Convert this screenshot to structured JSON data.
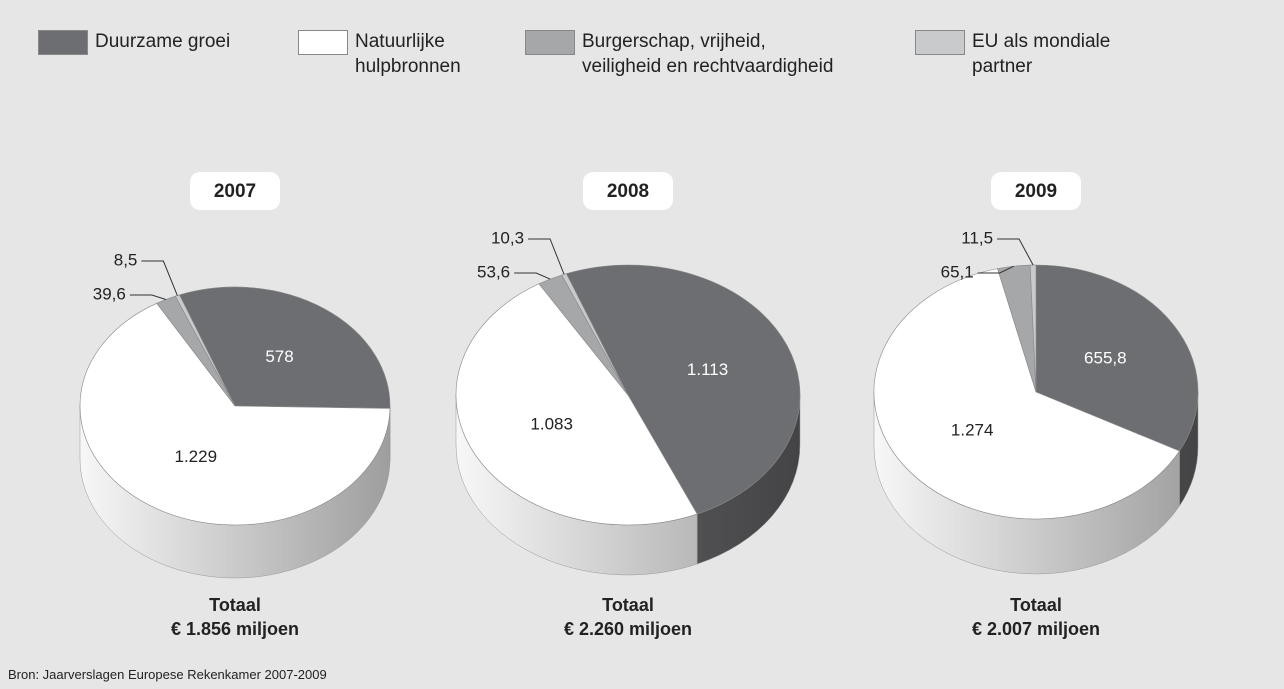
{
  "legend": {
    "labels": [
      "Duurzame groei",
      "Natuurlijke\nhulpbronnen",
      "Burgerschap, vrijheid,\nveiligheid en rechtvaardigheid",
      "EU als mondiale\npartner"
    ],
    "colors": [
      "#6d6e71",
      "#ffffff",
      "#a6a7a9",
      "#c9cacc"
    ]
  },
  "chart_data": [
    {
      "type": "pie",
      "title": "2007",
      "values": [
        578,
        1229,
        39.6,
        8.5
      ],
      "value_labels": [
        "578",
        "1.229",
        "39,6",
        "8,5"
      ],
      "startangle": -21,
      "total_label": "Totaal",
      "total": "€ 1.856 miljoen"
    },
    {
      "type": "pie",
      "title": "2008",
      "values": [
        1113,
        1083,
        53.6,
        10.3
      ],
      "value_labels": [
        "1.113",
        "1.083",
        "53,6",
        "10,3"
      ],
      "startangle": -21,
      "total_label": "Totaal",
      "total": "€ 2.260 miljoen"
    },
    {
      "type": "pie",
      "title": "2009",
      "values": [
        655.8,
        1274,
        65.1,
        11.5
      ],
      "value_labels": [
        "655,8",
        "1.274",
        "65,1",
        "11,5"
      ],
      "startangle": 0,
      "total_label": "Totaal",
      "total": "€ 2.007 miljoen"
    }
  ],
  "source": "Bron: Jaarverslagen Europese Rekenkamer 2007-2009"
}
